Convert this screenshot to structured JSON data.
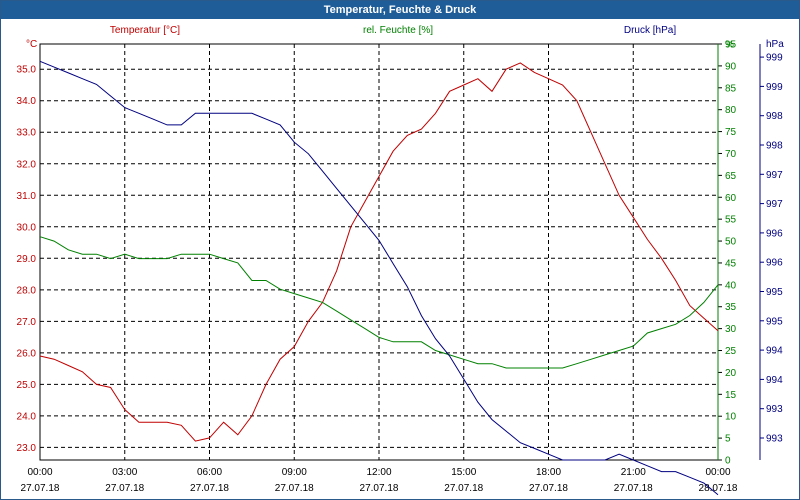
{
  "title": "Temperatur, Feuchte & Druck",
  "chart_data": {
    "type": "line",
    "title": "Temperatur, Feuchte & Druck",
    "grid": true,
    "x_ticks": [
      {
        "time": "00:00",
        "date": "27.07.18"
      },
      {
        "time": "03:00",
        "date": "27.07.18"
      },
      {
        "time": "06:00",
        "date": "27.07.18"
      },
      {
        "time": "09:00",
        "date": "27.07.18"
      },
      {
        "time": "12:00",
        "date": "27.07.18"
      },
      {
        "time": "15:00",
        "date": "27.07.18"
      },
      {
        "time": "18:00",
        "date": "27.07.18"
      },
      {
        "time": "21:00",
        "date": "27.07.18"
      },
      {
        "time": "00:00",
        "date": "28.07.18"
      }
    ],
    "x": [
      "00:00",
      "00:30",
      "01:00",
      "01:30",
      "02:00",
      "02:30",
      "03:00",
      "03:30",
      "04:00",
      "04:30",
      "05:00",
      "05:30",
      "06:00",
      "06:30",
      "07:00",
      "07:30",
      "08:00",
      "08:30",
      "09:00",
      "09:30",
      "10:00",
      "10:30",
      "11:00",
      "11:30",
      "12:00",
      "12:30",
      "13:00",
      "13:30",
      "14:00",
      "14:30",
      "15:00",
      "15:30",
      "16:00",
      "16:30",
      "17:00",
      "17:30",
      "18:00",
      "18:30",
      "19:00",
      "19:30",
      "20:00",
      "20:30",
      "21:00",
      "21:30",
      "22:00",
      "22:30",
      "23:00",
      "23:30",
      "24:00"
    ],
    "axes": {
      "left": {
        "label": "°C",
        "ticks": [
          "23.0",
          "24.0",
          "25.0",
          "26.0",
          "27.0",
          "28.0",
          "29.0",
          "30.0",
          "31.0",
          "32.0",
          "33.0",
          "34.0",
          "35.0"
        ],
        "range": [
          22.6,
          35.8
        ],
        "color": "#c00000"
      },
      "right1": {
        "label": "%",
        "ticks": [
          "0",
          "5",
          "10",
          "15",
          "20",
          "25",
          "30",
          "35",
          "40",
          "45",
          "50",
          "55",
          "60",
          "65",
          "70",
          "75",
          "80",
          "85",
          "90",
          "95",
          "%"
        ],
        "range": [
          0,
          95
        ],
        "color": "#008000"
      },
      "right2": {
        "label": "hPa",
        "ticks": [
          "993",
          "993",
          "994",
          "994",
          "995",
          "995",
          "996",
          "996",
          "997",
          "997",
          "998",
          "998",
          "999",
          "999"
        ],
        "range": [
          992.6,
          999.8
        ],
        "color": "#000080"
      }
    },
    "series": [
      {
        "name": "Temperatur [°C]",
        "axis": "left",
        "color": "#c00000",
        "values": [
          25.9,
          25.8,
          25.6,
          25.4,
          25.0,
          24.9,
          24.2,
          23.8,
          23.8,
          23.8,
          23.7,
          23.2,
          23.3,
          23.8,
          23.4,
          24.0,
          25.0,
          25.8,
          26.2,
          27.0,
          27.6,
          28.6,
          30.0,
          30.8,
          31.6,
          32.4,
          32.9,
          33.1,
          33.6,
          34.3,
          34.5,
          34.7,
          34.3,
          35.0,
          35.2,
          34.9,
          34.7,
          34.5,
          34.0,
          33.0,
          32.0,
          31.0,
          30.3,
          29.6,
          29.0,
          28.3,
          27.5,
          27.1,
          26.7
        ]
      },
      {
        "name": "rel. Feuchte [%]",
        "axis": "right1",
        "color": "#008000",
        "values": [
          51,
          50,
          48,
          47,
          47,
          46,
          47,
          46,
          46,
          46,
          47,
          47,
          47,
          46,
          45,
          41,
          41,
          39,
          38,
          37,
          36,
          34,
          32,
          30,
          28,
          27,
          27,
          27,
          25,
          24,
          23,
          22,
          22,
          21,
          21,
          21,
          21,
          21,
          22,
          23,
          24,
          25,
          26,
          29,
          30,
          31,
          33,
          36,
          40
        ]
      },
      {
        "name": "Druck [hPa]",
        "axis": "right2",
        "color": "#000080",
        "values": [
          999.5,
          999.4,
          999.3,
          999.2,
          999.1,
          998.9,
          998.7,
          998.6,
          998.5,
          998.4,
          998.4,
          998.6,
          998.6,
          998.6,
          998.6,
          998.6,
          998.5,
          998.4,
          998.1,
          997.9,
          997.6,
          997.3,
          997.0,
          996.7,
          996.4,
          996.0,
          995.6,
          995.1,
          994.7,
          994.4,
          994.0,
          993.6,
          993.3,
          993.1,
          992.9,
          992.8,
          992.7,
          992.6,
          992.6,
          992.6,
          992.6,
          992.7,
          992.6,
          992.5,
          992.4,
          992.4,
          992.3,
          992.2,
          992.0
        ]
      }
    ]
  }
}
